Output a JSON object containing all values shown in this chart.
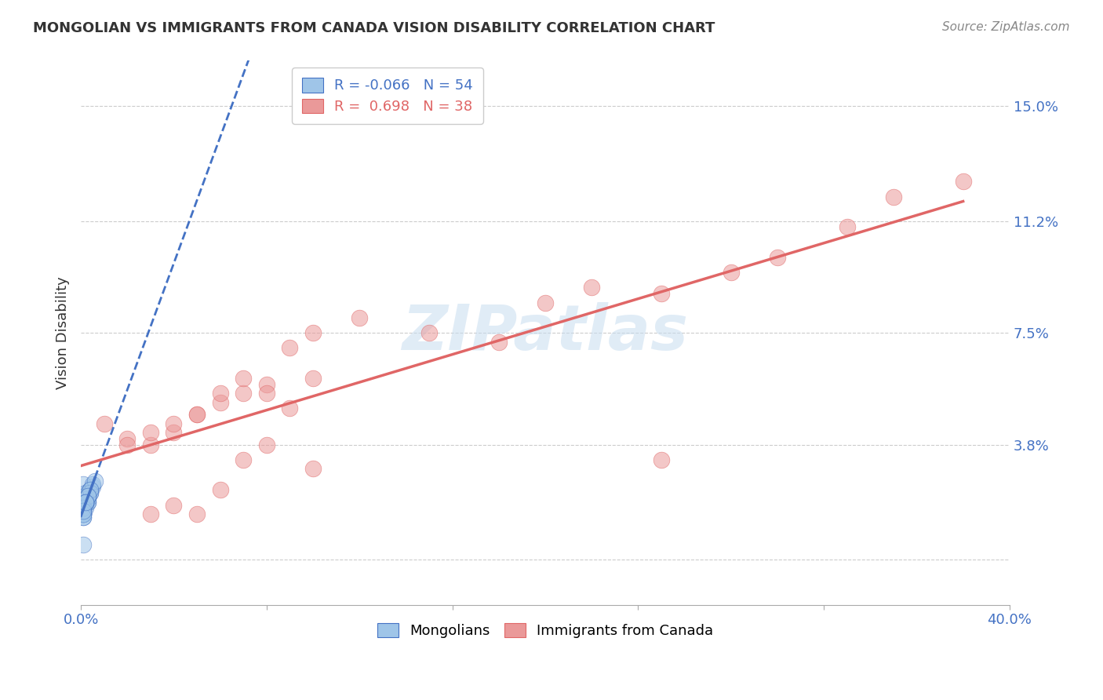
{
  "title": "MONGOLIAN VS IMMIGRANTS FROM CANADA VISION DISABILITY CORRELATION CHART",
  "source": "Source: ZipAtlas.com",
  "ylabel": "Vision Disability",
  "xlim": [
    0.0,
    0.4
  ],
  "ylim": [
    -0.015,
    0.165
  ],
  "xticks": [
    0.0,
    0.08,
    0.16,
    0.24,
    0.32,
    0.4
  ],
  "xticklabels": [
    "0.0%",
    "",
    "",
    "",
    "",
    "40.0%"
  ],
  "ytick_positions": [
    0.0,
    0.038,
    0.075,
    0.112,
    0.15
  ],
  "ytick_labels": [
    "",
    "3.8%",
    "7.5%",
    "11.2%",
    "15.0%"
  ],
  "legend_r1": "R = -0.066",
  "legend_n1": "N = 54",
  "legend_r2": "R =  0.698",
  "legend_n2": "N = 38",
  "color_blue": "#9fc5e8",
  "color_pink": "#ea9999",
  "color_line_blue": "#4472c4",
  "color_line_pink": "#e06666",
  "watermark": "ZIPatlas",
  "mongolian_x": [
    0.001,
    0.002,
    0.001,
    0.001,
    0.002,
    0.003,
    0.004,
    0.002,
    0.001,
    0.001,
    0.003,
    0.002,
    0.001,
    0.004,
    0.005,
    0.002,
    0.003,
    0.001,
    0.001,
    0.002,
    0.001,
    0.003,
    0.004,
    0.002,
    0.001,
    0.001,
    0.003,
    0.002,
    0.001,
    0.001,
    0.005,
    0.006,
    0.004,
    0.002,
    0.001,
    0.001,
    0.003,
    0.002,
    0.001,
    0.001,
    0.002,
    0.003,
    0.004,
    0.001,
    0.001,
    0.002,
    0.003,
    0.001,
    0.001,
    0.002,
    0.001,
    0.001,
    0.002,
    0.001
  ],
  "mongolian_y": [
    0.025,
    0.022,
    0.018,
    0.015,
    0.02,
    0.019,
    0.023,
    0.017,
    0.016,
    0.014,
    0.021,
    0.019,
    0.018,
    0.022,
    0.024,
    0.02,
    0.019,
    0.017,
    0.015,
    0.021,
    0.018,
    0.02,
    0.023,
    0.019,
    0.017,
    0.016,
    0.022,
    0.02,
    0.018,
    0.015,
    0.025,
    0.026,
    0.022,
    0.019,
    0.017,
    0.015,
    0.021,
    0.02,
    0.018,
    0.016,
    0.019,
    0.021,
    0.023,
    0.017,
    0.015,
    0.019,
    0.021,
    0.017,
    0.015,
    0.019,
    0.014,
    0.016,
    0.019,
    0.005
  ],
  "canada_x": [
    0.01,
    0.02,
    0.03,
    0.04,
    0.05,
    0.06,
    0.07,
    0.08,
    0.09,
    0.1,
    0.02,
    0.03,
    0.04,
    0.05,
    0.06,
    0.07,
    0.08,
    0.09,
    0.1,
    0.12,
    0.15,
    0.18,
    0.2,
    0.22,
    0.25,
    0.28,
    0.3,
    0.33,
    0.35,
    0.38,
    0.03,
    0.04,
    0.05,
    0.06,
    0.07,
    0.08,
    0.1,
    0.25
  ],
  "canada_y": [
    0.045,
    0.04,
    0.038,
    0.042,
    0.048,
    0.052,
    0.055,
    0.058,
    0.05,
    0.06,
    0.038,
    0.042,
    0.045,
    0.048,
    0.055,
    0.06,
    0.055,
    0.07,
    0.075,
    0.08,
    0.075,
    0.072,
    0.085,
    0.09,
    0.088,
    0.095,
    0.1,
    0.11,
    0.12,
    0.125,
    0.015,
    0.018,
    0.015,
    0.023,
    0.033,
    0.038,
    0.03,
    0.033
  ]
}
